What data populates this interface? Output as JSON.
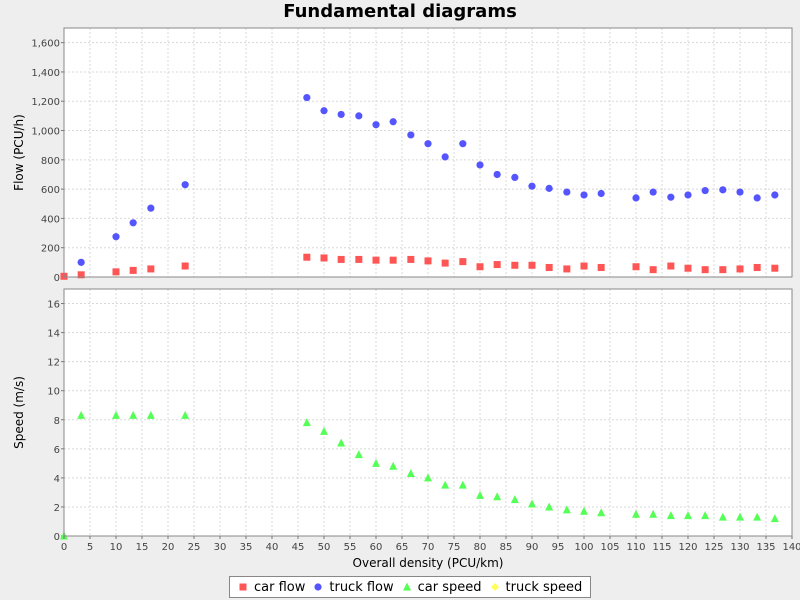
{
  "chart_data": {
    "title": "Fundamental diagrams",
    "type": "scatter",
    "xlabel": "Overall density (PCU/km)",
    "xlim": [
      0,
      140
    ],
    "xticks": [
      0,
      5,
      10,
      15,
      20,
      25,
      30,
      35,
      40,
      45,
      50,
      55,
      60,
      65,
      70,
      75,
      80,
      85,
      90,
      95,
      100,
      105,
      110,
      115,
      120,
      125,
      130,
      135,
      140
    ],
    "legend_position": "bottom",
    "grid": true,
    "colors": {
      "car_flow": "#ff5555",
      "truck_flow": "#5555ff",
      "car_speed": "#55ff55",
      "truck_speed": "#ffff55"
    },
    "subplots": [
      {
        "ylabel": "Flow (PCU/h)",
        "ylim": [
          0,
          1700
        ],
        "yticks": [
          0,
          200,
          400,
          600,
          800,
          1000,
          1200,
          1400,
          1600
        ],
        "ytick_labels": [
          "0",
          "200",
          "400",
          "600",
          "800",
          "1,000",
          "1,200",
          "1,400",
          "1,600"
        ],
        "series": [
          {
            "name": "car flow",
            "marker": "square",
            "color": "#ff5555",
            "x": [
              0,
              3.3,
              10,
              13.3,
              16.7,
              23.3,
              46.7,
              50,
              53.3,
              56.7,
              60,
              63.3,
              66.7,
              70,
              73.3,
              76.7,
              80,
              83.3,
              86.7,
              90,
              93.3,
              96.7,
              100,
              103.3,
              110,
              113.3,
              116.7,
              120,
              123.3,
              126.7,
              130,
              133.3,
              136.7
            ],
            "y": [
              5,
              15,
              35,
              45,
              55,
              75,
              135,
              130,
              120,
              120,
              115,
              115,
              120,
              110,
              95,
              105,
              70,
              85,
              80,
              80,
              65,
              55,
              75,
              65,
              70,
              50,
              75,
              60,
              50,
              50,
              55,
              65,
              60
            ]
          },
          {
            "name": "truck flow",
            "marker": "circle",
            "color": "#5555ff",
            "x": [
              3.3,
              10,
              13.3,
              16.7,
              23.3,
              46.7,
              50,
              53.3,
              56.7,
              60,
              63.3,
              66.7,
              70,
              73.3,
              76.7,
              80,
              83.3,
              86.7,
              90,
              93.3,
              96.7,
              100,
              103.3,
              110,
              113.3,
              116.7,
              120,
              123.3,
              126.7,
              130,
              133.3,
              136.7
            ],
            "y": [
              100,
              275,
              370,
              470,
              630,
              1225,
              1135,
              1110,
              1100,
              1040,
              1060,
              970,
              910,
              820,
              910,
              765,
              700,
              680,
              620,
              605,
              580,
              560,
              570,
              540,
              580,
              545,
              560,
              590,
              595,
              580,
              540,
              560
            ]
          }
        ]
      },
      {
        "ylabel": "Speed (m/s)",
        "ylim": [
          0,
          17
        ],
        "yticks": [
          0,
          2,
          4,
          6,
          8,
          10,
          12,
          14,
          16
        ],
        "ytick_labels": [
          "0",
          "2",
          "4",
          "6",
          "8",
          "10",
          "12",
          "14",
          "16"
        ],
        "series": [
          {
            "name": "car speed",
            "marker": "triangle",
            "color": "#55ff55",
            "x": [
              0,
              3.3,
              10,
              13.3,
              16.7,
              23.3,
              46.7,
              50,
              53.3,
              56.7,
              60,
              63.3,
              66.7,
              70,
              73.3,
              76.7,
              80,
              83.3,
              86.7,
              90,
              93.3,
              96.7,
              100,
              103.3,
              110,
              113.3,
              116.7,
              120,
              123.3,
              126.7,
              130,
              133.3,
              136.7
            ],
            "y": [
              0,
              8.3,
              8.3,
              8.3,
              8.3,
              8.3,
              7.8,
              7.2,
              6.4,
              5.6,
              5.0,
              4.8,
              4.3,
              4.0,
              3.5,
              3.5,
              2.8,
              2.7,
              2.5,
              2.2,
              2.0,
              1.8,
              1.7,
              1.6,
              1.5,
              1.5,
              1.4,
              1.4,
              1.4,
              1.3,
              1.3,
              1.3,
              1.2
            ]
          },
          {
            "name": "truck speed",
            "marker": "diamond",
            "color": "#ffff55",
            "x": [],
            "y": []
          }
        ]
      }
    ]
  }
}
